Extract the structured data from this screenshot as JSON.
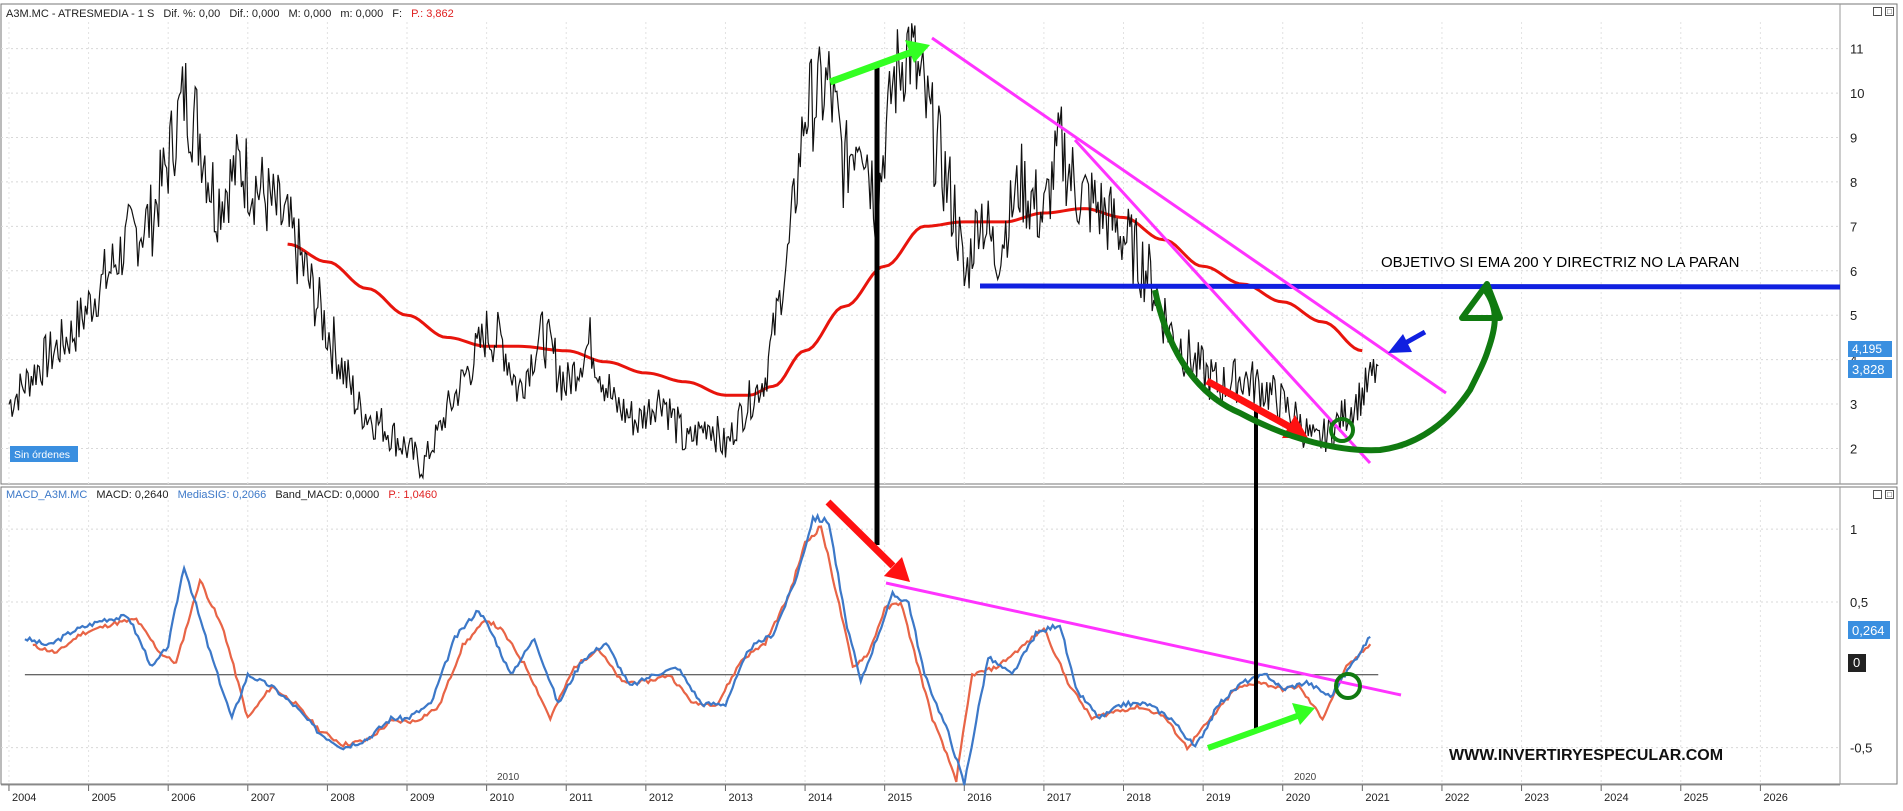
{
  "price_panel": {
    "header_symbol": "A3M.MC - ATRESMEDIA - 1 S",
    "header_dif_pct": "Dif. %: 0,00",
    "header_dif": "Dif.: 0,000",
    "header_max": "M: 0,000",
    "header_min": "m: 0,000",
    "header_f": "F:",
    "header_price": "P.: 3,862",
    "badge": "Sin órdenes",
    "label_upper": "4,195",
    "label_lower": "3,828",
    "annotation": "OBJETIVO SI EMA 200 Y DIRECTRIZ NO LA PARAN"
  },
  "macd_panel": {
    "header_name": "MACD_A3M.MC",
    "header_macd": "MACD: 0,2640",
    "header_signal": "MediaSIG: 0,2066",
    "header_band": "Band_MACD: 0,0000",
    "header_price": "P.: 1,0460",
    "label_macd": "0,264",
    "label_zero": "0",
    "watermark": "WWW.INVERTIRYESPECULAR.COM"
  },
  "colors": {
    "price_line": "#111111",
    "ema": "#e8140c",
    "macd": "#3c78c8",
    "signal": "#e86446",
    "trendline": "#ff33ff",
    "support": "#1020e0",
    "arrow_green": "#33ff22",
    "arrow_red": "#ff1111",
    "arc_green": "#107a10",
    "label_bg": "#3a8fe0"
  },
  "chart_data": [
    {
      "type": "line",
      "name_text": "A3M.MC - ATRESMEDIA - 1 S",
      "x_ticks": [
        "2004",
        "2005",
        "2006",
        "2007",
        "2008",
        "2009",
        "2010",
        "2011",
        "2012",
        "2013",
        "2014",
        "2015",
        "2016",
        "2017",
        "2018",
        "2019",
        "2020",
        "2021",
        "2022",
        "2023",
        "2024",
        "2025",
        "2026"
      ],
      "y_ticks": [
        2,
        3,
        4,
        5,
        6,
        7,
        8,
        9,
        10,
        11
      ],
      "ylim": [
        1.2,
        11.6
      ],
      "xlim": [
        2003.9,
        2027.0
      ],
      "grid": true,
      "series": [
        {
          "kind": "price",
          "x": [
            2004.0,
            2004.4,
            2004.8,
            2005.2,
            2005.5,
            2005.8,
            2006.0,
            2006.2,
            2006.4,
            2006.6,
            2006.9,
            2007.2,
            2007.5,
            2007.8,
            2008.1,
            2008.4,
            2008.7,
            2009.0,
            2009.2,
            2009.5,
            2009.8,
            2010.0,
            2010.2,
            2010.4,
            2010.7,
            2011.0,
            2011.3,
            2011.6,
            2011.9,
            2012.2,
            2012.5,
            2012.8,
            2013.0,
            2013.2,
            2013.5,
            2013.8,
            2014.0,
            2014.3,
            2014.5,
            2014.7,
            2014.9,
            2015.1,
            2015.3,
            2015.5,
            2015.7,
            2015.9,
            2016.0,
            2016.2,
            2016.4,
            2016.7,
            2017.0,
            2017.2,
            2017.4,
            2017.7,
            2018.0,
            2018.3,
            2018.6,
            2018.9,
            2019.2,
            2019.5,
            2019.8,
            2020.0,
            2020.2,
            2020.4,
            2020.6,
            2020.8,
            2021.0,
            2021.2
          ],
          "y": [
            3.0,
            3.9,
            4.6,
            5.8,
            6.7,
            7.2,
            8.5,
            10.0,
            9.1,
            7.5,
            8.4,
            7.7,
            7.0,
            5.6,
            4.2,
            2.9,
            2.5,
            2.0,
            1.6,
            2.8,
            3.9,
            4.6,
            4.4,
            3.3,
            4.6,
            3.4,
            4.4,
            3.0,
            2.6,
            3.2,
            2.1,
            2.6,
            2.0,
            2.8,
            3.6,
            6.5,
            9.6,
            10.2,
            8.3,
            9.4,
            7.5,
            10.2,
            11.1,
            9.8,
            8.5,
            7.2,
            5.7,
            7.4,
            6.3,
            8.0,
            7.2,
            8.9,
            7.8,
            7.4,
            6.8,
            6.0,
            4.6,
            3.9,
            3.4,
            3.6,
            3.3,
            3.0,
            2.6,
            2.1,
            2.4,
            2.8,
            3.2,
            3.86
          ]
        },
        {
          "kind": "ema",
          "x": [
            2007.5,
            2008.0,
            2008.5,
            2009.0,
            2009.5,
            2010.0,
            2010.4,
            2011.0,
            2011.5,
            2012.0,
            2012.5,
            2013.0,
            2013.3,
            2013.6,
            2014.0,
            2014.5,
            2015.0,
            2015.5,
            2016.0,
            2016.5,
            2017.0,
            2017.5,
            2018.0,
            2018.5,
            2019.0,
            2019.5,
            2020.0,
            2020.5,
            2021.0
          ],
          "y": [
            6.6,
            6.2,
            5.6,
            5.0,
            4.5,
            4.3,
            4.3,
            4.2,
            3.95,
            3.7,
            3.5,
            3.2,
            3.2,
            3.4,
            4.2,
            5.2,
            6.1,
            7.0,
            7.1,
            7.1,
            7.3,
            7.4,
            7.2,
            6.7,
            6.1,
            5.7,
            5.3,
            4.85,
            4.2
          ]
        }
      ]
    },
    {
      "type": "line",
      "name_text": "MACD_A3M.MC",
      "y_ticks": [
        -0.5,
        0,
        0.5,
        1
      ],
      "y_tick_labels": [
        "-0,5",
        "0",
        "0,5",
        "1"
      ],
      "ylim": [
        -0.75,
        1.2
      ],
      "xlim": [
        2003.9,
        2027.0
      ],
      "grid": true,
      "series": [
        {
          "kind": "macd",
          "x": [
            2004.2,
            2004.5,
            2004.8,
            2005.2,
            2005.5,
            2005.8,
            2006.0,
            2006.2,
            2006.5,
            2006.8,
            2007.0,
            2007.3,
            2007.6,
            2007.9,
            2008.2,
            2008.5,
            2008.8,
            2009.0,
            2009.3,
            2009.6,
            2009.9,
            2010.1,
            2010.3,
            2010.6,
            2010.9,
            2011.2,
            2011.5,
            2011.8,
            2012.1,
            2012.4,
            2012.7,
            2013.0,
            2013.3,
            2013.6,
            2013.9,
            2014.1,
            2014.3,
            2014.5,
            2014.7,
            2014.9,
            2015.1,
            2015.3,
            2015.5,
            2015.8,
            2016.0,
            2016.3,
            2016.6,
            2016.9,
            2017.2,
            2017.4,
            2017.7,
            2018.0,
            2018.3,
            2018.6,
            2018.9,
            2019.2,
            2019.5,
            2019.8,
            2020.0,
            2020.3,
            2020.6,
            2020.9,
            2021.1
          ],
          "y": [
            0.25,
            0.2,
            0.3,
            0.38,
            0.4,
            0.05,
            0.2,
            0.75,
            0.2,
            -0.3,
            0.0,
            -0.08,
            -0.22,
            -0.4,
            -0.5,
            -0.44,
            -0.3,
            -0.3,
            -0.2,
            0.25,
            0.45,
            0.25,
            0.0,
            0.25,
            -0.2,
            0.1,
            0.22,
            -0.08,
            0.0,
            0.05,
            -0.2,
            -0.2,
            0.18,
            0.28,
            0.68,
            1.08,
            1.05,
            0.4,
            -0.05,
            0.25,
            0.55,
            0.5,
            0.0,
            -0.4,
            -0.75,
            0.12,
            0.0,
            0.28,
            0.35,
            -0.1,
            -0.3,
            -0.2,
            -0.2,
            -0.3,
            -0.5,
            -0.2,
            -0.05,
            0.0,
            -0.1,
            -0.05,
            -0.15,
            0.1,
            0.26
          ]
        },
        {
          "kind": "signal",
          "x": [
            2004.3,
            2004.6,
            2004.9,
            2005.3,
            2005.6,
            2005.9,
            2006.1,
            2006.4,
            2006.7,
            2007.0,
            2007.3,
            2007.6,
            2007.9,
            2008.2,
            2008.5,
            2008.8,
            2009.1,
            2009.4,
            2009.7,
            2010.0,
            2010.2,
            2010.5,
            2010.8,
            2011.1,
            2011.4,
            2011.7,
            2012.0,
            2012.3,
            2012.6,
            2012.9,
            2013.2,
            2013.5,
            2013.8,
            2014.0,
            2014.2,
            2014.4,
            2014.6,
            2014.8,
            2015.0,
            2015.2,
            2015.4,
            2015.6,
            2015.9,
            2016.1,
            2016.4,
            2016.7,
            2017.0,
            2017.3,
            2017.6,
            2017.9,
            2018.2,
            2018.5,
            2018.8,
            2019.1,
            2019.4,
            2019.7,
            2020.0,
            2020.2,
            2020.5,
            2020.8,
            2021.1
          ],
          "y": [
            0.2,
            0.15,
            0.28,
            0.35,
            0.38,
            0.15,
            0.08,
            0.65,
            0.3,
            -0.3,
            -0.08,
            -0.2,
            -0.38,
            -0.48,
            -0.45,
            -0.32,
            -0.32,
            -0.22,
            0.2,
            0.38,
            0.3,
            0.05,
            -0.3,
            0.05,
            0.18,
            -0.05,
            -0.05,
            0.0,
            -0.2,
            -0.2,
            0.1,
            0.22,
            0.55,
            0.9,
            1.02,
            0.55,
            0.05,
            0.15,
            0.45,
            0.5,
            0.1,
            -0.3,
            -0.72,
            0.0,
            0.05,
            0.18,
            0.32,
            -0.05,
            -0.3,
            -0.25,
            -0.22,
            -0.28,
            -0.5,
            -0.3,
            -0.1,
            -0.05,
            -0.1,
            -0.08,
            -0.3,
            0.05,
            0.21
          ]
        }
      ]
    }
  ]
}
